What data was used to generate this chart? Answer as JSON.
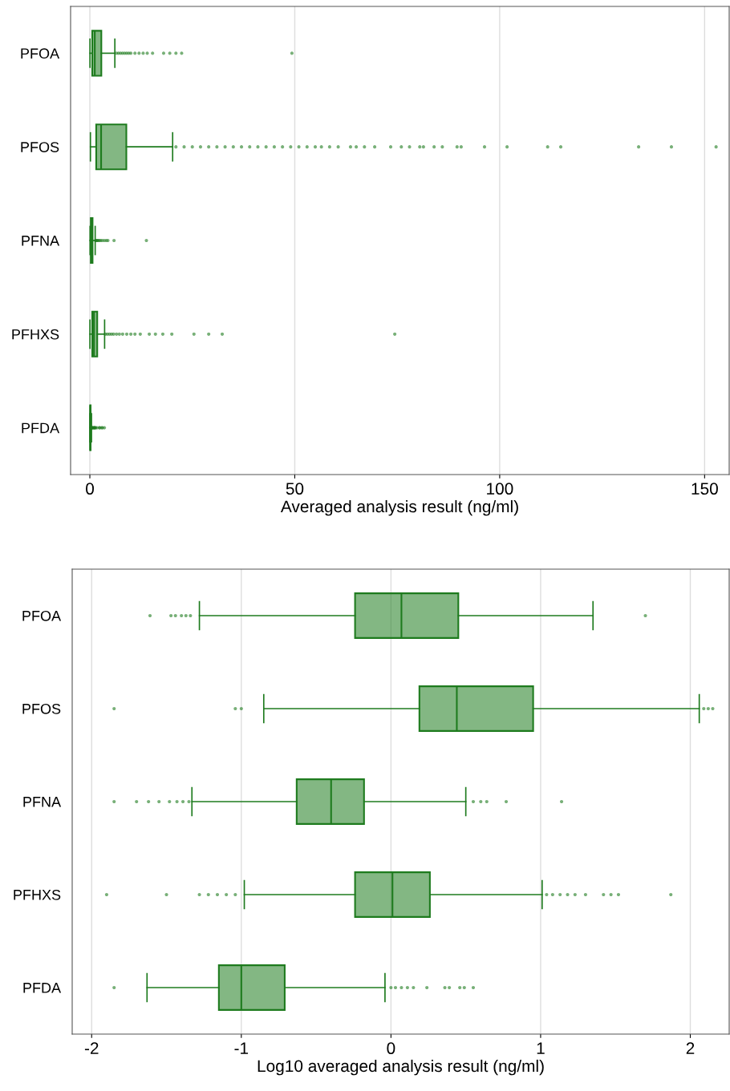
{
  "chart_data": [
    {
      "type": "box",
      "orientation": "horizontal",
      "xlabel": "Averaged analysis result (ng/ml)",
      "categories": [
        "PFOA",
        "PFOS",
        "PFNA",
        "PFHXS",
        "PFDA"
      ],
      "xlim": [
        -4.7,
        156
      ],
      "xticks": [
        0,
        50,
        100,
        150
      ],
      "grid": "x",
      "color": "#1e7b1e",
      "boxes": [
        {
          "low": 0.03,
          "q1": 0.58,
          "median": 1.2,
          "q3": 2.8,
          "high": 6.1,
          "outliers": [
            6.5,
            7,
            7.5,
            8,
            8.5,
            9,
            9.5,
            10,
            11,
            12,
            13,
            14,
            15.3,
            18,
            19.5,
            21,
            22.4,
            49.3
          ]
        },
        {
          "low": 0.14,
          "q1": 1.55,
          "median": 2.75,
          "q3": 8.9,
          "high": 20.2,
          "outliers": [
            21,
            23,
            25,
            27,
            29,
            31,
            33,
            35,
            37,
            39,
            41,
            43,
            45,
            47,
            49,
            51,
            53,
            55,
            56.5,
            58.5,
            60.6,
            63.6,
            65,
            67,
            69.5,
            73.4,
            76,
            78,
            80.5,
            81.4,
            84,
            86,
            89.6,
            90.6,
            96.3,
            101.8,
            111.7,
            114.9,
            133.9,
            141.9,
            152.8
          ]
        },
        {
          "low": 0.05,
          "q1": 0.23,
          "median": 0.4,
          "q3": 0.66,
          "high": 1.3,
          "outliers": [
            1.4,
            1.6,
            1.8,
            2,
            2.3,
            2.6,
            3,
            3.5,
            4,
            4.4,
            5.9,
            13.8
          ]
        },
        {
          "low": 0.02,
          "q1": 0.58,
          "median": 1.0,
          "q3": 1.8,
          "high": 3.6,
          "outliers": [
            3.8,
            4.3,
            4.8,
            5.3,
            5.8,
            6.5,
            7.2,
            8,
            9,
            10,
            11,
            12.3,
            14.5,
            16,
            17.8,
            20,
            25.4,
            29,
            32.3,
            74.4
          ]
        },
        {
          "low": 0.02,
          "q1": 0.07,
          "median": 0.1,
          "q3": 0.19,
          "high": 0.4,
          "outliers": [
            0.5,
            0.6,
            0.7,
            0.8,
            1,
            1.07,
            1.17,
            1.29,
            1.41,
            1.74,
            2.29,
            2.45,
            2.88,
            3.09,
            3.55
          ]
        }
      ]
    },
    {
      "type": "box",
      "orientation": "horizontal",
      "xlabel": "Log10 averaged analysis result (ng/ml)",
      "categories": [
        "PFOA",
        "PFOS",
        "PFNA",
        "PFHXS",
        "PFDA"
      ],
      "xlim": [
        -2.13,
        2.26
      ],
      "xticks": [
        {
          "value": -2,
          "label": "-2"
        },
        {
          "value": -1,
          "label": "-1"
        },
        0,
        1,
        2
      ],
      "grid": "x",
      "color": "#1e7b1e",
      "boxes": [
        {
          "low": -1.28,
          "q1": -0.24,
          "median": 0.07,
          "q3": 0.45,
          "high": 1.35,
          "outliers": [
            -1.61,
            -1.47,
            -1.44,
            -1.4,
            -1.37,
            -1.34,
            1.7
          ]
        },
        {
          "low": -0.85,
          "q1": 0.19,
          "median": 0.44,
          "q3": 0.95,
          "high": 2.06,
          "outliers": [
            -1.85,
            -1.04,
            -1.0,
            2.09,
            2.12,
            2.15
          ]
        },
        {
          "low": -1.33,
          "q1": -0.63,
          "median": -0.4,
          "q3": -0.18,
          "high": 0.5,
          "outliers": [
            -1.85,
            -1.7,
            -1.62,
            -1.55,
            -1.48,
            -1.43,
            -1.39,
            -1.35,
            0.55,
            0.6,
            0.64,
            0.77,
            1.14
          ]
        },
        {
          "low": -0.98,
          "q1": -0.24,
          "median": 0.01,
          "q3": 0.26,
          "high": 1.01,
          "outliers": [
            -1.9,
            -1.5,
            -1.28,
            -1.22,
            -1.16,
            -1.1,
            -1.04,
            1.04,
            1.08,
            1.13,
            1.18,
            1.23,
            1.3,
            1.42,
            1.47,
            1.52,
            1.87
          ]
        },
        {
          "low": -1.63,
          "q1": -1.15,
          "median": -1.0,
          "q3": -0.71,
          "high": -0.04,
          "outliers": [
            -1.85,
            0.0,
            0.03,
            0.07,
            0.11,
            0.15,
            0.24,
            0.36,
            0.39,
            0.46,
            0.49,
            0.55
          ]
        }
      ]
    }
  ]
}
